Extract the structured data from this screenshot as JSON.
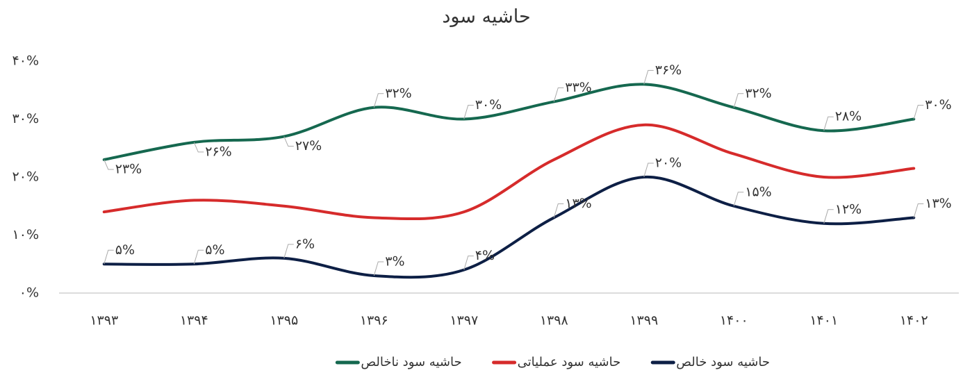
{
  "chart_data": {
    "type": "line",
    "title": "حاشیه سود",
    "categories": [
      "۱۳۹۳",
      "۱۳۹۴",
      "۱۳۹۵",
      "۱۳۹۶",
      "۱۳۹۷",
      "۱۳۹۸",
      "۱۳۹۹",
      "۱۴۰۰",
      "۱۴۰۱",
      "۱۴۰۲"
    ],
    "series": [
      {
        "name": "حاشیه سود ناخالص",
        "color": "#15684f",
        "values": [
          23,
          26,
          27,
          32,
          30,
          33,
          36,
          32,
          28,
          30
        ],
        "value_labels": [
          "۲۳%",
          "۲۶%",
          "۲۷%",
          "۳۲%",
          "۳۰%",
          "۳۳%",
          "۳۶%",
          "۳۲%",
          "۲۸%",
          "۳۰%"
        ]
      },
      {
        "name": "حاشیه سود عملیاتی",
        "color": "#d62b2b",
        "values": [
          14,
          16,
          15,
          13,
          14,
          23,
          29,
          24,
          20,
          21.5
        ]
      },
      {
        "name": "حاشیه سود خالص",
        "color": "#0d1f45",
        "values": [
          5,
          5,
          6,
          3,
          4,
          13,
          20,
          15,
          12,
          13
        ],
        "value_labels": [
          "۵%",
          "۵%",
          "۶%",
          "۳%",
          "۴%",
          "۱۳%",
          "۲۰%",
          "۱۵%",
          "۱۲%",
          "۱۳%"
        ]
      }
    ],
    "ylim": [
      0,
      40
    ],
    "yticks": [
      {
        "value": 0,
        "label": "۰%"
      },
      {
        "value": 10,
        "label": "۱۰%"
      },
      {
        "value": 20,
        "label": "۲۰%"
      },
      {
        "value": 30,
        "label": "۳۰%"
      },
      {
        "value": 40,
        "label": "۴۰%"
      }
    ],
    "grid": false,
    "legend": "bottom"
  }
}
